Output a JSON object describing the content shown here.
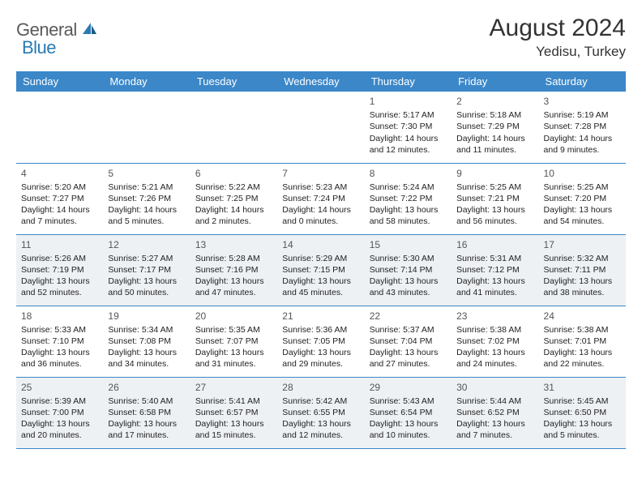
{
  "brand": {
    "word1": "General",
    "word2": "Blue"
  },
  "title": "August 2024",
  "location": "Yedisu, Turkey",
  "colors": {
    "header_bg": "#3b87c8",
    "header_text": "#ffffff",
    "alt_row_bg": "#eef1f4",
    "row_border": "#3b87c8",
    "logo_gray": "#5a5a5a",
    "logo_blue": "#2a7ab0"
  },
  "weekdays": [
    "Sunday",
    "Monday",
    "Tuesday",
    "Wednesday",
    "Thursday",
    "Friday",
    "Saturday"
  ],
  "weeks": [
    {
      "alt": false,
      "days": [
        null,
        null,
        null,
        null,
        {
          "n": "1",
          "sr": "Sunrise: 5:17 AM",
          "ss": "Sunset: 7:30 PM",
          "d1": "Daylight: 14 hours",
          "d2": "and 12 minutes."
        },
        {
          "n": "2",
          "sr": "Sunrise: 5:18 AM",
          "ss": "Sunset: 7:29 PM",
          "d1": "Daylight: 14 hours",
          "d2": "and 11 minutes."
        },
        {
          "n": "3",
          "sr": "Sunrise: 5:19 AM",
          "ss": "Sunset: 7:28 PM",
          "d1": "Daylight: 14 hours",
          "d2": "and 9 minutes."
        }
      ]
    },
    {
      "alt": false,
      "days": [
        {
          "n": "4",
          "sr": "Sunrise: 5:20 AM",
          "ss": "Sunset: 7:27 PM",
          "d1": "Daylight: 14 hours",
          "d2": "and 7 minutes."
        },
        {
          "n": "5",
          "sr": "Sunrise: 5:21 AM",
          "ss": "Sunset: 7:26 PM",
          "d1": "Daylight: 14 hours",
          "d2": "and 5 minutes."
        },
        {
          "n": "6",
          "sr": "Sunrise: 5:22 AM",
          "ss": "Sunset: 7:25 PM",
          "d1": "Daylight: 14 hours",
          "d2": "and 2 minutes."
        },
        {
          "n": "7",
          "sr": "Sunrise: 5:23 AM",
          "ss": "Sunset: 7:24 PM",
          "d1": "Daylight: 14 hours",
          "d2": "and 0 minutes."
        },
        {
          "n": "8",
          "sr": "Sunrise: 5:24 AM",
          "ss": "Sunset: 7:22 PM",
          "d1": "Daylight: 13 hours",
          "d2": "and 58 minutes."
        },
        {
          "n": "9",
          "sr": "Sunrise: 5:25 AM",
          "ss": "Sunset: 7:21 PM",
          "d1": "Daylight: 13 hours",
          "d2": "and 56 minutes."
        },
        {
          "n": "10",
          "sr": "Sunrise: 5:25 AM",
          "ss": "Sunset: 7:20 PM",
          "d1": "Daylight: 13 hours",
          "d2": "and 54 minutes."
        }
      ]
    },
    {
      "alt": true,
      "days": [
        {
          "n": "11",
          "sr": "Sunrise: 5:26 AM",
          "ss": "Sunset: 7:19 PM",
          "d1": "Daylight: 13 hours",
          "d2": "and 52 minutes."
        },
        {
          "n": "12",
          "sr": "Sunrise: 5:27 AM",
          "ss": "Sunset: 7:17 PM",
          "d1": "Daylight: 13 hours",
          "d2": "and 50 minutes."
        },
        {
          "n": "13",
          "sr": "Sunrise: 5:28 AM",
          "ss": "Sunset: 7:16 PM",
          "d1": "Daylight: 13 hours",
          "d2": "and 47 minutes."
        },
        {
          "n": "14",
          "sr": "Sunrise: 5:29 AM",
          "ss": "Sunset: 7:15 PM",
          "d1": "Daylight: 13 hours",
          "d2": "and 45 minutes."
        },
        {
          "n": "15",
          "sr": "Sunrise: 5:30 AM",
          "ss": "Sunset: 7:14 PM",
          "d1": "Daylight: 13 hours",
          "d2": "and 43 minutes."
        },
        {
          "n": "16",
          "sr": "Sunrise: 5:31 AM",
          "ss": "Sunset: 7:12 PM",
          "d1": "Daylight: 13 hours",
          "d2": "and 41 minutes."
        },
        {
          "n": "17",
          "sr": "Sunrise: 5:32 AM",
          "ss": "Sunset: 7:11 PM",
          "d1": "Daylight: 13 hours",
          "d2": "and 38 minutes."
        }
      ]
    },
    {
      "alt": false,
      "days": [
        {
          "n": "18",
          "sr": "Sunrise: 5:33 AM",
          "ss": "Sunset: 7:10 PM",
          "d1": "Daylight: 13 hours",
          "d2": "and 36 minutes."
        },
        {
          "n": "19",
          "sr": "Sunrise: 5:34 AM",
          "ss": "Sunset: 7:08 PM",
          "d1": "Daylight: 13 hours",
          "d2": "and 34 minutes."
        },
        {
          "n": "20",
          "sr": "Sunrise: 5:35 AM",
          "ss": "Sunset: 7:07 PM",
          "d1": "Daylight: 13 hours",
          "d2": "and 31 minutes."
        },
        {
          "n": "21",
          "sr": "Sunrise: 5:36 AM",
          "ss": "Sunset: 7:05 PM",
          "d1": "Daylight: 13 hours",
          "d2": "and 29 minutes."
        },
        {
          "n": "22",
          "sr": "Sunrise: 5:37 AM",
          "ss": "Sunset: 7:04 PM",
          "d1": "Daylight: 13 hours",
          "d2": "and 27 minutes."
        },
        {
          "n": "23",
          "sr": "Sunrise: 5:38 AM",
          "ss": "Sunset: 7:02 PM",
          "d1": "Daylight: 13 hours",
          "d2": "and 24 minutes."
        },
        {
          "n": "24",
          "sr": "Sunrise: 5:38 AM",
          "ss": "Sunset: 7:01 PM",
          "d1": "Daylight: 13 hours",
          "d2": "and 22 minutes."
        }
      ]
    },
    {
      "alt": true,
      "days": [
        {
          "n": "25",
          "sr": "Sunrise: 5:39 AM",
          "ss": "Sunset: 7:00 PM",
          "d1": "Daylight: 13 hours",
          "d2": "and 20 minutes."
        },
        {
          "n": "26",
          "sr": "Sunrise: 5:40 AM",
          "ss": "Sunset: 6:58 PM",
          "d1": "Daylight: 13 hours",
          "d2": "and 17 minutes."
        },
        {
          "n": "27",
          "sr": "Sunrise: 5:41 AM",
          "ss": "Sunset: 6:57 PM",
          "d1": "Daylight: 13 hours",
          "d2": "and 15 minutes."
        },
        {
          "n": "28",
          "sr": "Sunrise: 5:42 AM",
          "ss": "Sunset: 6:55 PM",
          "d1": "Daylight: 13 hours",
          "d2": "and 12 minutes."
        },
        {
          "n": "29",
          "sr": "Sunrise: 5:43 AM",
          "ss": "Sunset: 6:54 PM",
          "d1": "Daylight: 13 hours",
          "d2": "and 10 minutes."
        },
        {
          "n": "30",
          "sr": "Sunrise: 5:44 AM",
          "ss": "Sunset: 6:52 PM",
          "d1": "Daylight: 13 hours",
          "d2": "and 7 minutes."
        },
        {
          "n": "31",
          "sr": "Sunrise: 5:45 AM",
          "ss": "Sunset: 6:50 PM",
          "d1": "Daylight: 13 hours",
          "d2": "and 5 minutes."
        }
      ]
    }
  ]
}
